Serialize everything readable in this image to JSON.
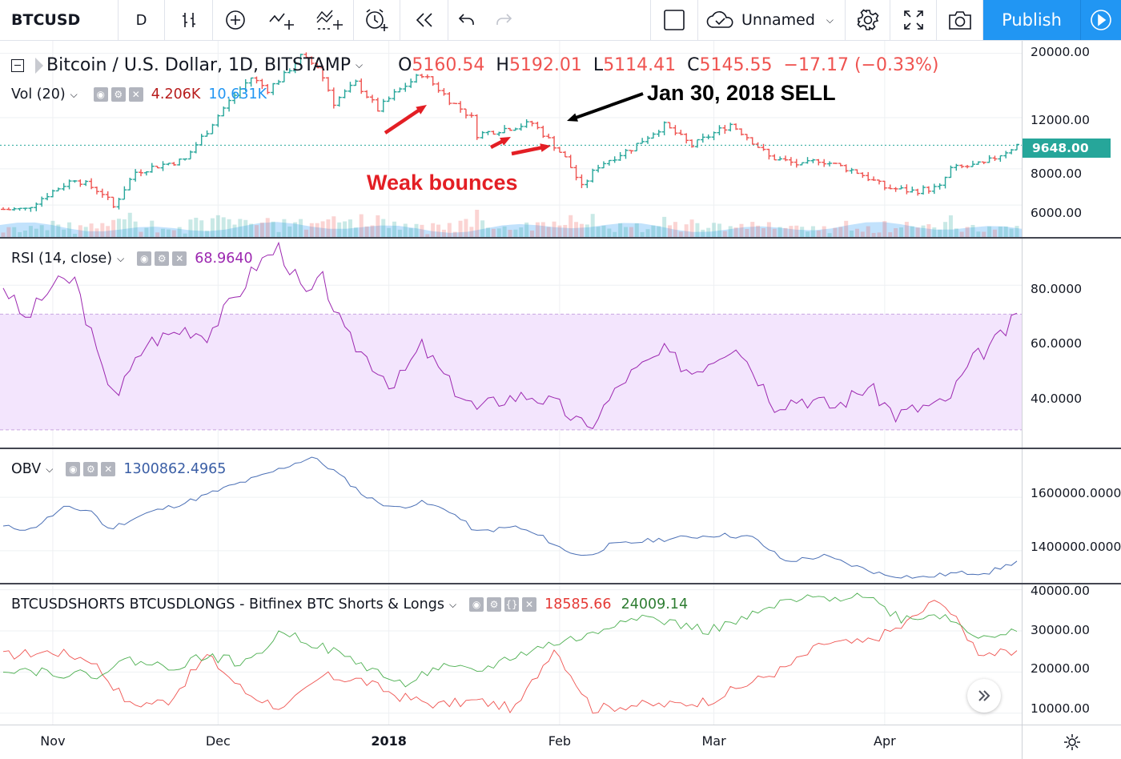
{
  "toolbar": {
    "symbol": "BTCUSD",
    "interval": "D",
    "layout_name": "Unnamed",
    "publish_label": "Publish"
  },
  "main_pane": {
    "title": "Bitcoin / U.S. Dollar, 1D, BITSTAMP",
    "ohlc": {
      "o_label": "O",
      "o": "5160.54",
      "h_label": "H",
      "h": "5192.01",
      "l_label": "L",
      "l": "5114.41",
      "c_label": "C",
      "c": "5145.55",
      "change": "−17.17 (−0.33%)"
    },
    "volume_legend": {
      "name": "Vol (20)",
      "value1": "4.206K",
      "value2": "10.631K"
    },
    "last_price_tag": "9648.00",
    "y_ticks": [
      "20000.00",
      "12000.00",
      "8000.00",
      "6000.00"
    ],
    "annotations": {
      "sell": "Jan 30, 2018 SELL",
      "bounces": "Weak bounces"
    }
  },
  "rsi_pane": {
    "legend": "RSI (14, close)",
    "value": "68.9640",
    "y_ticks": [
      "80.0000",
      "60.0000",
      "40.0000"
    ]
  },
  "obv_pane": {
    "legend": "OBV",
    "value": "1300862.4965",
    "y_ticks": [
      "1600000.0000",
      "1400000.0000"
    ]
  },
  "shorts_pane": {
    "legend": "BTCUSDSHORTS BTCUSDLONGS - Bitfinex BTC Shorts & Longs",
    "shorts_value": "18585.66",
    "longs_value": "24009.14",
    "y_ticks": [
      "40000.00",
      "30000.00",
      "20000.00",
      "10000.00"
    ]
  },
  "x_axis": {
    "ticks": [
      "Nov",
      "Dec",
      "2018",
      "Feb",
      "Mar",
      "Apr"
    ]
  },
  "colors": {
    "up": "#26a69a",
    "down": "#ef5350",
    "rsi": "#9c27b0",
    "rsi_band": "#f3e5fd",
    "obv": "#2962ff",
    "shorts": "#ef5350",
    "longs": "#4caf50",
    "accent": "#2196f3"
  },
  "chart_data": [
    {
      "type": "ohlc",
      "title": "Bitcoin / U.S. Dollar, 1D, BITSTAMP",
      "y_scale": "log",
      "ylim": [
        4900,
        21000
      ],
      "x_range": [
        "2017-10-23",
        "2018-04-25"
      ],
      "close_anchors": [
        [
          "2017-10-23",
          5800
        ],
        [
          "2017-10-27",
          5800
        ],
        [
          "2017-11-01",
          6700
        ],
        [
          "2017-11-05",
          7400
        ],
        [
          "2017-11-10",
          6600
        ],
        [
          "2017-11-12",
          5900
        ],
        [
          "2017-11-16",
          7800
        ],
        [
          "2017-11-20",
          8200
        ],
        [
          "2017-11-25",
          8600
        ],
        [
          "2017-11-29",
          10800
        ],
        [
          "2017-12-07",
          16500
        ],
        [
          "2017-12-10",
          15000
        ],
        [
          "2017-12-13",
          16800
        ],
        [
          "2017-12-16",
          19500
        ],
        [
          "2017-12-19",
          18000
        ],
        [
          "2017-12-22",
          13500
        ],
        [
          "2017-12-26",
          15800
        ],
        [
          "2017-12-30",
          12800
        ],
        [
          "2018-01-02",
          14500
        ],
        [
          "2018-01-07",
          17000
        ],
        [
          "2018-01-12",
          13800
        ],
        [
          "2018-01-16",
          12000
        ],
        [
          "2018-01-17",
          10500
        ],
        [
          "2018-01-22",
          11000
        ],
        [
          "2018-01-27",
          11500
        ],
        [
          "2018-01-30",
          10100
        ],
        [
          "2018-02-02",
          8700
        ],
        [
          "2018-02-05",
          6900
        ],
        [
          "2018-02-08",
          8200
        ],
        [
          "2018-02-14",
          9400
        ],
        [
          "2018-02-20",
          11300
        ],
        [
          "2018-02-25",
          9600
        ],
        [
          "2018-03-04",
          11400
        ],
        [
          "2018-03-06",
          10700
        ],
        [
          "2018-03-11",
          8800
        ],
        [
          "2018-03-17",
          8200
        ],
        [
          "2018-03-20",
          8600
        ],
        [
          "2018-03-27",
          7800
        ],
        [
          "2018-04-01",
          6900
        ],
        [
          "2018-04-06",
          6700
        ],
        [
          "2018-04-11",
          6900
        ],
        [
          "2018-04-13",
          8000
        ],
        [
          "2018-04-19",
          8300
        ],
        [
          "2018-04-25",
          9648
        ]
      ],
      "series": [
        {
          "name": "Vol (20)",
          "last": "4.206K"
        }
      ]
    },
    {
      "type": "line",
      "title": "RSI (14, close)",
      "ylim": [
        25,
        95
      ],
      "band": [
        30,
        70
      ],
      "x": [
        "2017-10-23",
        "2017-10-27",
        "2017-11-01",
        "2017-11-05",
        "2017-11-10",
        "2017-11-13",
        "2017-11-18",
        "2017-11-25",
        "2017-11-29",
        "2017-12-05",
        "2017-12-08",
        "2017-12-12",
        "2017-12-17",
        "2017-12-20",
        "2017-12-24",
        "2018-01-02",
        "2018-01-07",
        "2018-01-12",
        "2018-01-17",
        "2018-01-22",
        "2018-01-27",
        "2018-02-01",
        "2018-02-06",
        "2018-02-13",
        "2018-02-20",
        "2018-02-25",
        "2018-03-05",
        "2018-03-12",
        "2018-03-17",
        "2018-03-23",
        "2018-03-29",
        "2018-04-03",
        "2018-04-08",
        "2018-04-12",
        "2018-04-17",
        "2018-04-22",
        "2018-04-25"
      ],
      "values": [
        80,
        68,
        80,
        82,
        50,
        43,
        60,
        65,
        63,
        78,
        87,
        93,
        76,
        82,
        63,
        45,
        59,
        46,
        37,
        41,
        42,
        38,
        30,
        48,
        57,
        50,
        60,
        39,
        41,
        38,
        45,
        35,
        38,
        39,
        54,
        62,
        69
      ]
    },
    {
      "type": "line",
      "title": "OBV",
      "ylim": [
        1280000,
        1780000
      ],
      "x": [
        "2017-10-23",
        "2017-10-28",
        "2017-11-03",
        "2017-11-08",
        "2017-11-11",
        "2017-11-18",
        "2017-11-25",
        "2017-12-03",
        "2017-12-09",
        "2017-12-14",
        "2017-12-18",
        "2017-12-22",
        "2017-12-28",
        "2018-01-02",
        "2018-01-07",
        "2018-01-12",
        "2018-01-17",
        "2018-01-24",
        "2018-01-29",
        "2018-02-02",
        "2018-02-06",
        "2018-02-10",
        "2018-02-18",
        "2018-02-24",
        "2018-03-02",
        "2018-03-08",
        "2018-03-14",
        "2018-03-21",
        "2018-03-27",
        "2018-04-01",
        "2018-04-08",
        "2018-04-13",
        "2018-04-20",
        "2018-04-25"
      ],
      "values": [
        1490000,
        1480000,
        1560000,
        1550000,
        1480000,
        1540000,
        1580000,
        1640000,
        1680000,
        1720000,
        1750000,
        1700000,
        1600000,
        1560000,
        1580000,
        1550000,
        1470000,
        1490000,
        1450000,
        1400000,
        1380000,
        1420000,
        1440000,
        1450000,
        1460000,
        1450000,
        1360000,
        1380000,
        1340000,
        1310000,
        1300000,
        1315000,
        1320000,
        1360000
      ]
    },
    {
      "type": "line",
      "title": "BTCUSDSHORTS BTCUSDLONGS - Bitfinex BTC Shorts & Longs",
      "ylim": [
        8000,
        40500
      ],
      "x": [
        "2017-10-23",
        "2017-11-01",
        "2017-11-08",
        "2017-11-15",
        "2017-11-22",
        "2017-11-29",
        "2017-12-06",
        "2017-12-13",
        "2017-12-20",
        "2017-12-27",
        "2018-01-03",
        "2018-01-10",
        "2018-01-17",
        "2018-01-24",
        "2018-01-31",
        "2018-02-07",
        "2018-02-14",
        "2018-02-21",
        "2018-02-28",
        "2018-03-07",
        "2018-03-14",
        "2018-03-21",
        "2018-03-28",
        "2018-04-04",
        "2018-04-11",
        "2018-04-18",
        "2018-04-25"
      ],
      "series": [
        {
          "name": "BTCUSDSHORTS",
          "values": [
            24000,
            25000,
            23000,
            12000,
            13000,
            24000,
            15000,
            11000,
            19000,
            18000,
            14000,
            12000,
            13000,
            11000,
            26000,
            11000,
            12000,
            12000,
            13000,
            17000,
            21000,
            27000,
            27000,
            31000,
            38000,
            25000,
            24000
          ]
        },
        {
          "name": "BTCUSDLONGS",
          "values": [
            21000,
            20000,
            19000,
            23000,
            21000,
            24000,
            22000,
            30000,
            26000,
            22000,
            17000,
            21000,
            20000,
            24000,
            27000,
            29000,
            34000,
            32000,
            30000,
            33000,
            37000,
            38000,
            39000,
            33000,
            34000,
            29000,
            29500
          ]
        }
      ]
    }
  ]
}
